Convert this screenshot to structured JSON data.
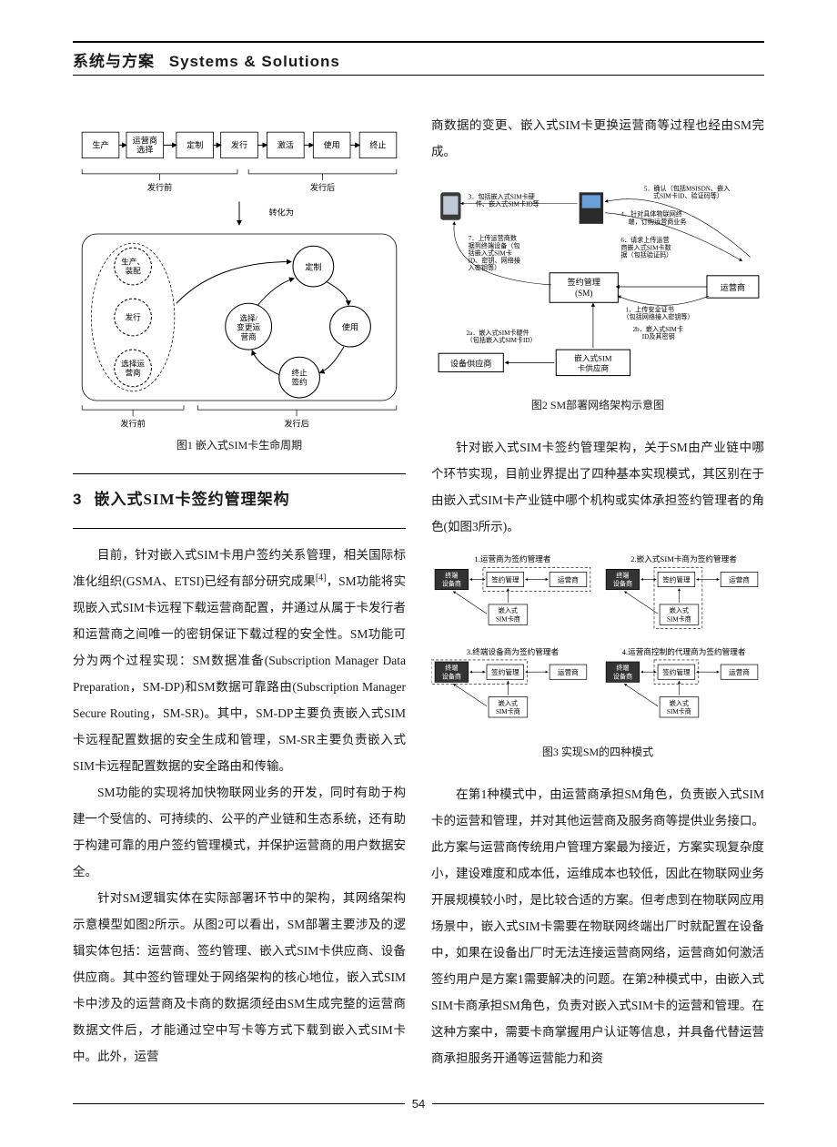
{
  "header": {
    "title_cn": "系统与方案",
    "title_en": "Systems & Solutions"
  },
  "page_number": "54",
  "section3": {
    "num": "3",
    "title": "嵌入式SIM卡签约管理架构"
  },
  "fig1": {
    "caption": "图1  嵌入式SIM卡生命周期",
    "top_boxes": [
      "生产",
      "运营商选择",
      "定制",
      "发行",
      "激活",
      "使用",
      "终止"
    ],
    "top_group_left": "发行前",
    "top_group_right": "发行后",
    "mid_label": "转化为",
    "lc_left": [
      "生产、装配",
      "发行",
      "选择运营商"
    ],
    "lc_right": "定制",
    "lc_center": "选择/变更运营商",
    "lc_use": "使用",
    "lc_terminate": "终止签约",
    "bot_left": "发行前",
    "bot_right": "发行后"
  },
  "fig2": {
    "caption": "图2  SM部署网络架构示意图",
    "node_device": "设备供应商",
    "node_simvendor": "嵌入式SIM卡供应商",
    "node_sm": "签约管理(SM)",
    "node_operator": "运营商",
    "lbl1": "1．上传安全证书（包括网络接入密钥等）",
    "lbl2a": "2a．嵌入式SIM卡硬件（包括嵌入式SIM卡ID）",
    "lbl2b": "2b．嵌入式SIM卡ID及其密钥",
    "lbl3": "3．包括嵌入式SIM卡硬件、嵌入式SIM卡ID等",
    "lbl4": "4．针对具体物联网终端，订购运营商业务",
    "lbl5": "5．确认（包括MSISDN、嵌入式SIM卡ID、验证码等）",
    "lbl6": "6．请求上传运营商嵌入式SIM卡数据（包括验证码）",
    "lbl7": "7．上传运营商数据到终端设备（包括嵌入式SIM卡ID、密钥、网络接入密钥等）"
  },
  "fig3": {
    "caption": "图3  实现SM的四种模式",
    "titles": [
      "1.运营商为签约管理者",
      "2.嵌入式SIM卡商为签约管理者",
      "3.终端设备商为签约管理者",
      "4.运营商控制的代理商为签约管理者"
    ],
    "box_term": "终端设备商",
    "box_sm": "签约管理",
    "box_op": "运营商",
    "box_esim": "嵌入式SIM卡商"
  },
  "para_left": [
    "目前，针对嵌入式SIM卡用户签约关系管理，相关国际标准化组织(GSMA、ETSI)已经有部分研究成果[4]，SM功能将实现嵌入式SIM卡远程下载运营商配置，并通过从属于卡发行者和运营商之间唯一的密钥保证下载过程的安全性。SM功能可分为两个过程实现：SM数据准备(Subscription Manager Data Preparation，SM-DP)和SM数据可靠路由(Subscription Manager Secure Routing，SM-SR)。其中，SM-DP主要负责嵌入式SIM卡远程配置数据的安全生成和管理，SM-SR主要负责嵌入式SIM卡远程配置数据的安全路由和传输。",
    "SM功能的实现将加快物联网业务的开发，同时有助于构建一个受信的、可持续的、公平的产业链和生态系统，还有助于构建可靠的用户签约管理模式，并保护运营商的用户数据安全。",
    "针对SM逻辑实体在实际部署环节中的架构，其网络架构示意模型如图2所示。从图2可以看出，SM部署主要涉及的逻辑实体包括：运营商、签约管理、嵌入式SIM卡供应商、设备供应商。其中签约管理处于网络架构的核心地位，嵌入式SIM卡中涉及的运营商及卡商的数据须经由SM生成完整的运营商数据文件后，才能通过空中写卡等方式下载到嵌入式SIM卡中。此外，运营"
  ],
  "para_right_top": "商数据的变更、嵌入式SIM卡更换运营商等过程也经由SM完成。",
  "para_right_mid": "针对嵌入式SIM卡签约管理架构，关于SM由产业链中哪个环节实现，目前业界提出了四种基本实现模式，其区别在于由嵌入式SIM卡产业链中哪个机构或实体承担签约管理者的角色(如图3所示)。",
  "para_right_bot": "在第1种模式中，由运营商承担SM角色，负责嵌入式SIM卡的运营和管理，并对其他运营商及服务商等提供业务接口。此方案与运营商传统用户管理方案最为接近，方案实现复杂度小，建设难度和成本低，运维成本也较低，因此在物联网业务开展规模较小时，是比较合适的方案。但考虑到在物联网应用场景中，嵌入式SIM卡需要在物联网终端出厂时就配置在设备中，如果在设备出厂时无法连接运营商网络，运营商如何激活签约用户是方案1需要解决的问题。在第2种模式中，由嵌入式SIM卡商承担SM角色，负责对嵌入式SIM卡的运营和管理。在这种方案中，需要卡商掌握用户认证等信息，并具备代替运营商承担服务开通等运营能力和资"
}
